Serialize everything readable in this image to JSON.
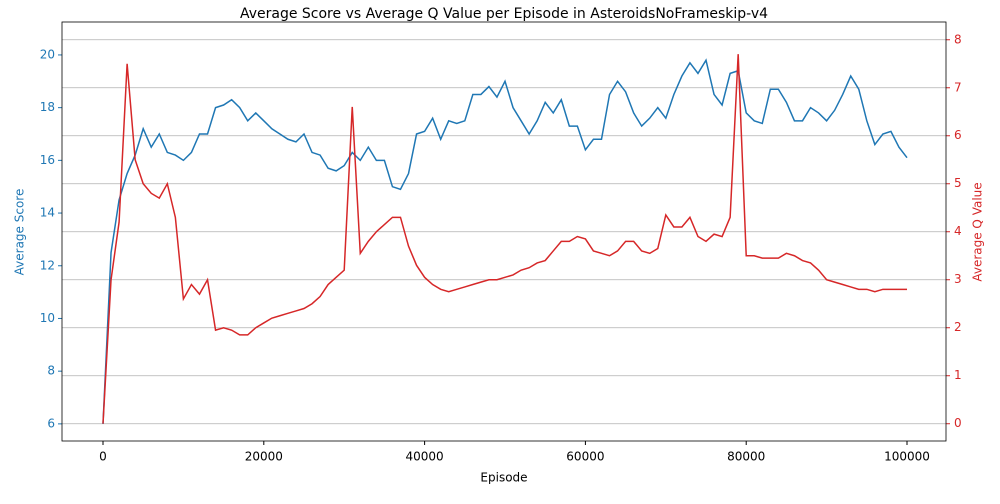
{
  "chart_data": {
    "type": "line",
    "title": "Average Score vs Average Q Value per Episode in AsteroidsNoFrameskip-v4",
    "x_label": "Episode",
    "y_label": "Average Score",
    "y2_label": "Average Q Value",
    "x": [
      0,
      1000,
      2000,
      3000,
      4000,
      5000,
      6000,
      7000,
      8000,
      9000,
      10000,
      11000,
      12000,
      13000,
      14000,
      15000,
      16000,
      17000,
      18000,
      19000,
      20000,
      21000,
      22000,
      23000,
      24000,
      25000,
      26000,
      27000,
      28000,
      29000,
      30000,
      31000,
      32000,
      33000,
      34000,
      35000,
      36000,
      37000,
      38000,
      39000,
      40000,
      41000,
      42000,
      43000,
      44000,
      45000,
      46000,
      47000,
      48000,
      49000,
      50000,
      51000,
      52000,
      53000,
      54000,
      55000,
      56000,
      57000,
      58000,
      59000,
      60000,
      61000,
      62000,
      63000,
      64000,
      65000,
      66000,
      67000,
      68000,
      69000,
      70000,
      71000,
      72000,
      73000,
      74000,
      75000,
      76000,
      77000,
      78000,
      79000,
      80000,
      81000,
      82000,
      83000,
      84000,
      85000,
      86000,
      87000,
      88000,
      89000,
      90000,
      91000,
      92000,
      93000,
      94000,
      95000,
      96000,
      97000,
      98000,
      99000,
      100000
    ],
    "series": [
      {
        "name": "Average Score",
        "color": "#1f77b4",
        "values": [
          6,
          12.5,
          14.5,
          15.5,
          16.2,
          17.2,
          16.5,
          17,
          16.3,
          16.2,
          16,
          16.3,
          17,
          17,
          18,
          18.1,
          18.3,
          18,
          17.5,
          17.8,
          17.5,
          17.2,
          17,
          16.8,
          16.7,
          17,
          16.3,
          16.2,
          15.7,
          15.6,
          15.8,
          16.3,
          16,
          16.5,
          16,
          16,
          15,
          14.9,
          15.5,
          17,
          17.1,
          17.6,
          16.8,
          17.5,
          17.4,
          17.5,
          18.5,
          18.5,
          18.8,
          18.4,
          19,
          18,
          17.5,
          17,
          17.5,
          18.2,
          17.8,
          18.3,
          17.3,
          17.3,
          16.4,
          16.8,
          16.8,
          18.5,
          19,
          18.6,
          17.8,
          17.3,
          17.6,
          18,
          17.6,
          18.5,
          19.2,
          19.7,
          19.3,
          19.8,
          18.5,
          18.1,
          19.3,
          19.4,
          17.8,
          17.5,
          17.4,
          18.7,
          18.7,
          18.2,
          17.5,
          17.5,
          18,
          17.8,
          17.5,
          17.9,
          18.5,
          19.2,
          18.7,
          17.5,
          16.6,
          17,
          17.1,
          16.5,
          16.1
        ]
      },
      {
        "name": "Average Q Value",
        "color": "#d62728",
        "axis": "y2",
        "values": [
          0,
          3,
          4.2,
          7.5,
          5.5,
          5,
          4.8,
          4.7,
          5,
          4.3,
          2.6,
          2.9,
          2.7,
          3,
          1.95,
          2,
          1.95,
          1.85,
          1.85,
          2,
          2.1,
          2.2,
          2.25,
          2.3,
          2.35,
          2.4,
          2.5,
          2.65,
          2.9,
          3.05,
          3.2,
          6.6,
          3.55,
          3.8,
          4,
          4.15,
          4.3,
          4.3,
          3.7,
          3.3,
          3.05,
          2.9,
          2.8,
          2.75,
          2.8,
          2.85,
          2.9,
          2.95,
          3,
          3,
          3.05,
          3.1,
          3.2,
          3.25,
          3.35,
          3.4,
          3.6,
          3.8,
          3.8,
          3.9,
          3.85,
          3.6,
          3.55,
          3.5,
          3.6,
          3.8,
          3.8,
          3.6,
          3.55,
          3.65,
          4.35,
          4.1,
          4.1,
          4.3,
          3.9,
          3.8,
          3.95,
          3.9,
          4.3,
          7.7,
          3.5,
          3.5,
          3.45,
          3.45,
          3.45,
          3.55,
          3.5,
          3.4,
          3.35,
          3.2,
          3,
          2.95,
          2.9,
          2.85,
          2.8,
          2.8,
          2.75,
          2.8,
          2.8,
          2.8,
          2.8
        ]
      }
    ],
    "xlim": [
      -5100,
      104850
    ],
    "xticks": [
      0,
      20000,
      40000,
      60000,
      80000,
      100000
    ],
    "ylim": [
      5.35,
      21.25
    ],
    "yticks": [
      6,
      8,
      10,
      12,
      14,
      16,
      18,
      20
    ],
    "y2lim": [
      -0.36,
      8.37
    ],
    "y2ticks": [
      0,
      1,
      2,
      3,
      4,
      5,
      6,
      7,
      8
    ],
    "grid": "y2"
  }
}
